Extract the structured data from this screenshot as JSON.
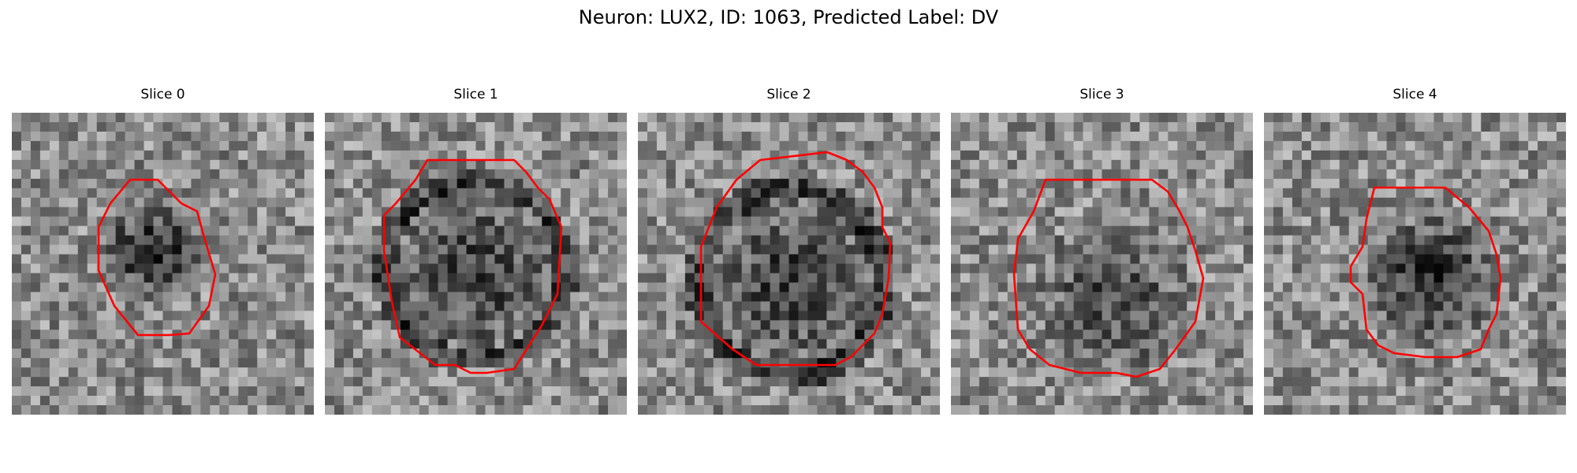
{
  "figure": {
    "title": "Neuron: LUX2, ID: 1063, Predicted Label: DV",
    "outline_color": "#ff0000"
  },
  "panels": [
    {
      "title": "Slice 0"
    },
    {
      "title": "Slice 1"
    },
    {
      "title": "Slice 2"
    },
    {
      "title": "Slice 3"
    },
    {
      "title": "Slice 4"
    }
  ]
}
